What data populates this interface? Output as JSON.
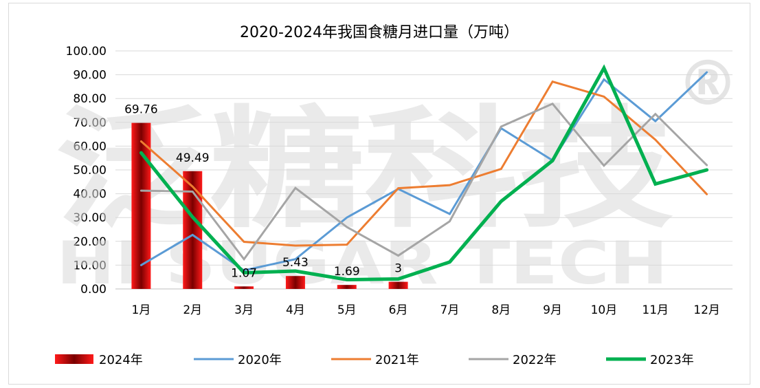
{
  "chart_data": {
    "type": "bar+line",
    "title": "2020-2024年我国食糖月进口量（万吨）",
    "categories": [
      "1月",
      "2月",
      "3月",
      "4月",
      "5月",
      "6月",
      "7月",
      "8月",
      "9月",
      "10月",
      "11月",
      "12月"
    ],
    "ylim": [
      0,
      100
    ],
    "ytick_labels": [
      "0.00",
      "10.00",
      "20.00",
      "30.00",
      "40.00",
      "50.00",
      "60.00",
      "70.00",
      "80.00",
      "90.00",
      "100.00"
    ],
    "grid": true,
    "bar_series": {
      "name": "2024年",
      "values": [
        69.76,
        49.49,
        1.07,
        5.43,
        1.69,
        3,
        null,
        null,
        null,
        null,
        null,
        null
      ],
      "labels": [
        "69.76",
        "49.49",
        "1.07",
        "5.43",
        "1.69",
        "3"
      ],
      "color": "#e00000"
    },
    "series": [
      {
        "name": "2020年",
        "color": "#5b9bd5",
        "width": 3,
        "values": [
          10,
          22.7,
          7.8,
          12.5,
          30,
          42,
          31.5,
          67.5,
          54,
          88,
          70.5,
          91
        ]
      },
      {
        "name": "2021年",
        "color": "#ed7d31",
        "width": 3,
        "values": [
          62,
          43,
          19.8,
          18.2,
          18.6,
          42.3,
          43.6,
          50.4,
          87.1,
          80.8,
          62.7,
          39.8
        ]
      },
      {
        "name": "2022年",
        "color": "#a5a5a5",
        "width": 3,
        "values": [
          41.3,
          40.9,
          12.5,
          42.4,
          26,
          14,
          28.4,
          68.2,
          77.8,
          51.8,
          73.5,
          52
        ]
      },
      {
        "name": "2023年",
        "color": "#00b050",
        "width": 5,
        "values": [
          57.2,
          30.2,
          6.8,
          7.5,
          3.9,
          4.2,
          11.3,
          36.8,
          53.9,
          92.8,
          44.1,
          50
        ]
      }
    ],
    "legend_position": "bottom",
    "watermark": {
      "cn": "泛糖科技",
      "en": "HI SUGAR TECH",
      "mark": "®"
    }
  }
}
